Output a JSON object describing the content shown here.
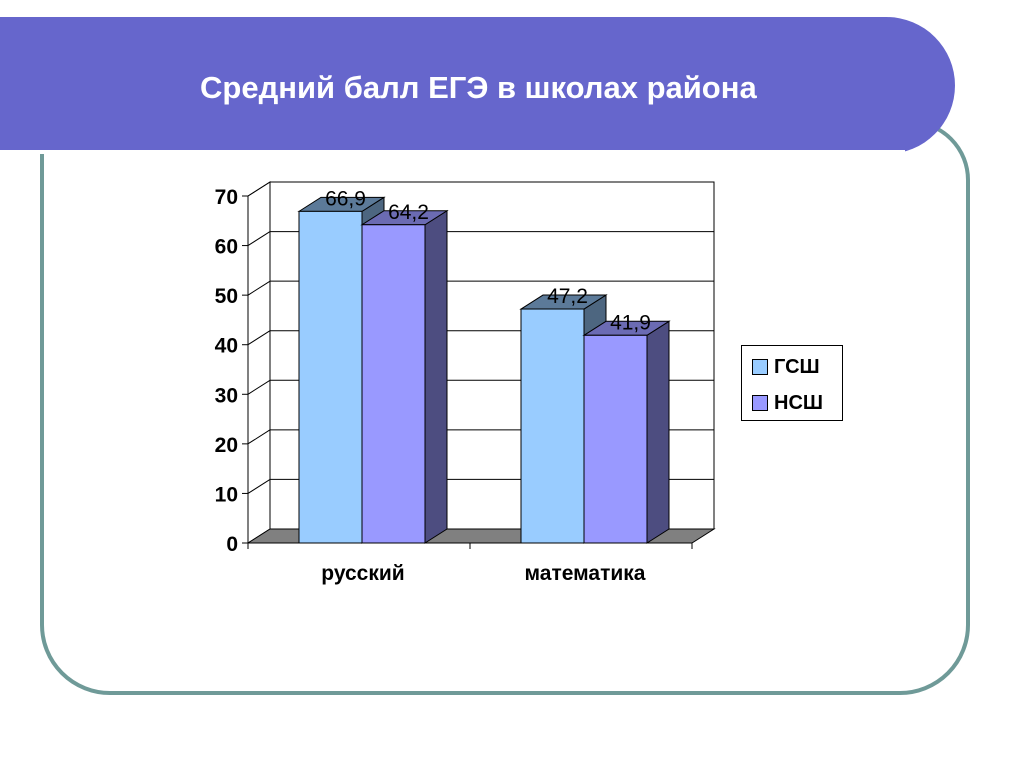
{
  "slide": {
    "title": "Средний балл ЕГЭ в школах района"
  },
  "colors": {
    "title_band": "#6666cc",
    "frame": "#6f9a98",
    "series_front": [
      "#99ccff",
      "#9999ff"
    ],
    "series_side": [
      "#4d6680",
      "#4d4d80"
    ],
    "series_top": [
      "#5c7a99",
      "#6b6bb3"
    ],
    "floor": "#808080"
  },
  "chart_data": {
    "type": "bar",
    "title": "",
    "xlabel": "",
    "ylabel": "",
    "categories": [
      "русский",
      "математика"
    ],
    "series": [
      {
        "name": "ГСШ",
        "values": [
          66.9,
          47.2
        ],
        "labels": [
          "66,9",
          "47,2"
        ]
      },
      {
        "name": "НСШ",
        "values": [
          64.2,
          41.9
        ],
        "labels": [
          "64,2",
          "41,9"
        ]
      }
    ],
    "ylim": [
      0,
      70
    ],
    "yticks": [
      "0",
      "10",
      "20",
      "30",
      "40",
      "50",
      "60",
      "70"
    ],
    "grid": true,
    "legend_position": "right",
    "style": "3d-clustered-column"
  }
}
